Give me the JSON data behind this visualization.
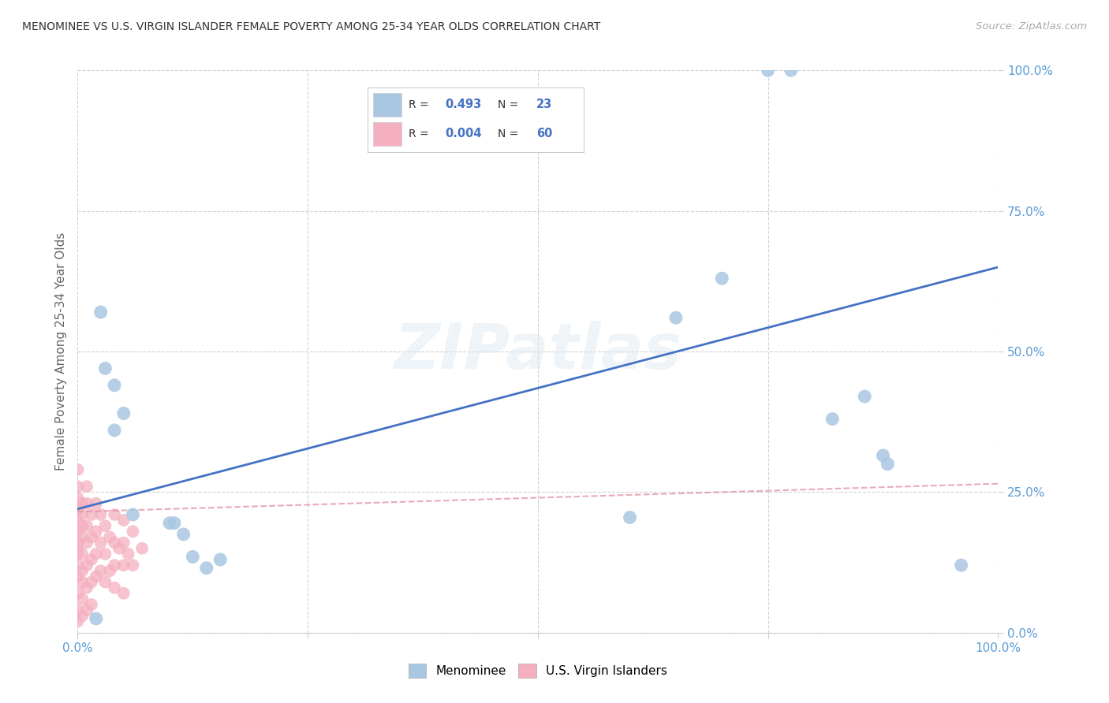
{
  "title": "MENOMINEE VS U.S. VIRGIN ISLANDER FEMALE POVERTY AMONG 25-34 YEAR OLDS CORRELATION CHART",
  "source": "Source: ZipAtlas.com",
  "ylabel": "Female Poverty Among 25-34 Year Olds",
  "xlim": [
    0,
    1
  ],
  "ylim": [
    0,
    1
  ],
  "xticks": [
    0.0,
    0.25,
    0.5,
    0.75,
    1.0
  ],
  "yticks": [
    0.0,
    0.25,
    0.5,
    0.75,
    1.0
  ],
  "xticklabels": [
    "0.0%",
    "",
    "",
    "",
    "100.0%"
  ],
  "yticklabels": [
    "0.0%",
    "25.0%",
    "50.0%",
    "75.0%",
    "100.0%"
  ],
  "menominee_x": [
    0.02,
    0.025,
    0.03,
    0.04,
    0.04,
    0.05,
    0.06,
    0.1,
    0.105,
    0.115,
    0.125,
    0.14,
    0.155,
    0.6,
    0.65,
    0.7,
    0.75,
    0.775,
    0.82,
    0.855,
    0.875,
    0.88,
    0.96
  ],
  "menominee_y": [
    0.025,
    0.57,
    0.47,
    0.44,
    0.36,
    0.39,
    0.21,
    0.195,
    0.195,
    0.175,
    0.135,
    0.115,
    0.13,
    0.205,
    0.56,
    0.63,
    1.0,
    1.0,
    0.38,
    0.42,
    0.315,
    0.3,
    0.12
  ],
  "virgin_x": [
    0.0,
    0.0,
    0.0,
    0.0,
    0.0,
    0.0,
    0.0,
    0.0,
    0.0,
    0.0,
    0.0,
    0.0,
    0.0,
    0.0,
    0.005,
    0.005,
    0.005,
    0.005,
    0.005,
    0.005,
    0.005,
    0.005,
    0.005,
    0.01,
    0.01,
    0.01,
    0.01,
    0.01,
    0.01,
    0.01,
    0.015,
    0.015,
    0.015,
    0.015,
    0.015,
    0.02,
    0.02,
    0.02,
    0.02,
    0.025,
    0.025,
    0.025,
    0.03,
    0.03,
    0.03,
    0.035,
    0.035,
    0.04,
    0.04,
    0.04,
    0.04,
    0.045,
    0.05,
    0.05,
    0.05,
    0.05,
    0.055,
    0.06,
    0.06,
    0.07
  ],
  "virgin_y": [
    0.26,
    0.24,
    0.22,
    0.2,
    0.18,
    0.16,
    0.14,
    0.12,
    0.1,
    0.07,
    0.04,
    0.02,
    0.29,
    0.15,
    0.23,
    0.21,
    0.19,
    0.17,
    0.14,
    0.11,
    0.09,
    0.06,
    0.03,
    0.26,
    0.23,
    0.19,
    0.16,
    0.12,
    0.08,
    0.04,
    0.21,
    0.17,
    0.13,
    0.09,
    0.05,
    0.23,
    0.18,
    0.14,
    0.1,
    0.21,
    0.16,
    0.11,
    0.19,
    0.14,
    0.09,
    0.17,
    0.11,
    0.21,
    0.16,
    0.12,
    0.08,
    0.15,
    0.2,
    0.16,
    0.12,
    0.07,
    0.14,
    0.18,
    0.12,
    0.15
  ],
  "menominee_R": 0.493,
  "menominee_N": 23,
  "virgin_R": 0.004,
  "virgin_N": 60,
  "menominee_dot_color": "#aac7e2",
  "menominee_line_color": "#4472c4",
  "virgin_dot_color": "#f4afc0",
  "virgin_line_color": "#e08898",
  "background_color": "#ffffff",
  "title_color": "#333333",
  "axis_tick_color": "#5b9bd5",
  "watermark": "ZIPatlas",
  "legend_r_color": "#4472c4",
  "menominee_trendline": [
    0.0,
    1.0,
    0.22,
    0.65
  ],
  "virgin_trendline": [
    0.0,
    1.0,
    0.215,
    0.265
  ]
}
